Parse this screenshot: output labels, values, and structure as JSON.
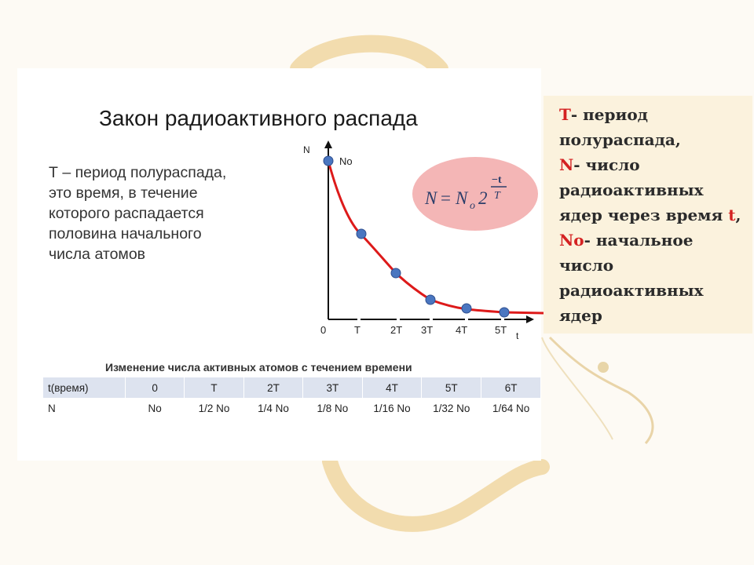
{
  "title": "Закон радиоактивного распада",
  "definition_lines": [
    "Т – период полураспада,",
    "это время, в течение",
    "которого распадается",
    "половина начального",
    "числа атомов"
  ],
  "graph": {
    "y_axis_label": "N",
    "x_axis_label": "t",
    "n0_label": "No",
    "origin_label": "0",
    "x_ticks": [
      "T",
      "2T",
      "3T",
      "4T",
      "5T"
    ],
    "formula": {
      "lhs": "N",
      "eq": "=",
      "n": "N",
      "sub": "o",
      "base": "2",
      "exp_num": "−t",
      "exp_den": "T"
    }
  },
  "table": {
    "caption": "Изменение числа активных атомов с течением времени",
    "header": [
      "t(время)",
      "0",
      "T",
      "2T",
      "3T",
      "4T",
      "5T",
      "6T"
    ],
    "row": [
      "N",
      "No",
      "1/2  No",
      "1/4 No",
      "1/8 No",
      "1/16 No",
      "1/32 No",
      "1/64 No"
    ]
  },
  "legend": {
    "line1": {
      "key": "Т",
      "text": "- период"
    },
    "line2": "полураспада,",
    "line3": {
      "key": "N",
      "text": "- число"
    },
    "line4": "радиоактивных",
    "line5": {
      "text": "ядер через время ",
      "key": "t",
      "tail": ","
    },
    "line6": {
      "key": "No",
      "text": "- начальное"
    },
    "line7": "число",
    "line8": "радиоактивных",
    "line9": "ядер"
  },
  "colors": {
    "curve": "#dd1a1a",
    "point": "#4a76c0",
    "ellipse": "#f4b6b6",
    "key_red": "#d42222"
  }
}
